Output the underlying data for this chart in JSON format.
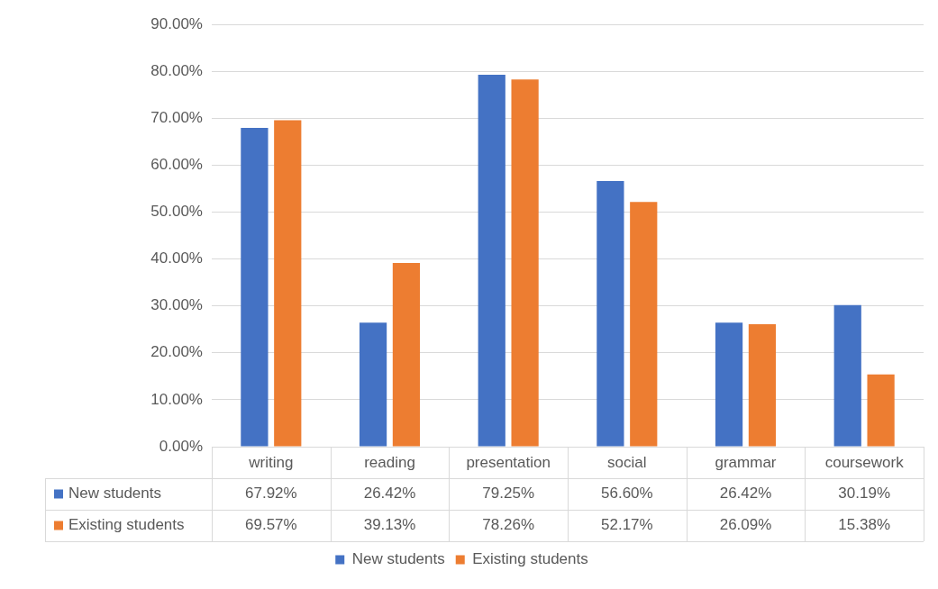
{
  "chart_data": {
    "type": "bar",
    "categories": [
      "writing",
      "reading",
      "presentation",
      "social",
      "grammar",
      "coursework"
    ],
    "series": [
      {
        "name": "New students",
        "color": "#4472c4",
        "values": [
          67.92,
          26.42,
          79.25,
          56.6,
          26.42,
          30.19
        ],
        "value_labels": [
          "67.92%",
          "26.42%",
          "79.25%",
          "56.60%",
          "26.42%",
          "30.19%"
        ]
      },
      {
        "name": "Existing students",
        "color": "#ed7d31",
        "values": [
          69.57,
          39.13,
          78.26,
          52.17,
          26.09,
          15.38
        ],
        "value_labels": [
          "69.57%",
          "39.13%",
          "78.26%",
          "52.17%",
          "26.09%",
          "15.38%"
        ]
      }
    ],
    "ylim": [
      0,
      90
    ],
    "yticks": [
      {
        "value": 0,
        "label": "0.00%"
      },
      {
        "value": 10,
        "label": "10.00%"
      },
      {
        "value": 20,
        "label": "20.00%"
      },
      {
        "value": 30,
        "label": "30.00%"
      },
      {
        "value": 40,
        "label": "40.00%"
      },
      {
        "value": 50,
        "label": "50.00%"
      },
      {
        "value": 60,
        "label": "60.00%"
      },
      {
        "value": 70,
        "label": "70.00%"
      },
      {
        "value": 80,
        "label": "80.00%"
      },
      {
        "value": 90,
        "label": "90.00%"
      }
    ],
    "grid": "y",
    "legend": "bottom"
  }
}
